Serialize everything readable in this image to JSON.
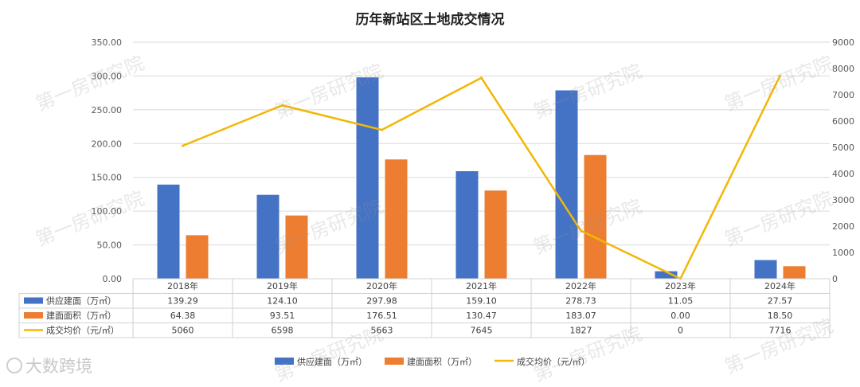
{
  "chart_data": {
    "type": "bar",
    "title": "历年新站区土地成交情况",
    "categories": [
      "2018年",
      "2019年",
      "2020年",
      "2021年",
      "2022年",
      "2023年",
      "2024年"
    ],
    "series": [
      {
        "name": "供应建面（万㎡）",
        "type": "bar",
        "axis": "left",
        "color": "#4472c4",
        "values": [
          139.29,
          124.1,
          297.98,
          159.1,
          278.73,
          11.05,
          27.57
        ],
        "labels": [
          "139.29",
          "124.10",
          "297.98",
          "159.10",
          "278.73",
          "11.05",
          "27.57"
        ]
      },
      {
        "name": "建面面积（万㎡）",
        "type": "bar",
        "axis": "left",
        "color": "#ed7d31",
        "values": [
          64.38,
          93.51,
          176.51,
          130.47,
          183.07,
          0.0,
          18.5
        ],
        "labels": [
          "64.38",
          "93.51",
          "176.51",
          "130.47",
          "183.07",
          "0.00",
          "18.50"
        ]
      },
      {
        "name": "成交均价（元/㎡）",
        "type": "line",
        "axis": "right",
        "color": "#f2b705",
        "values": [
          5060,
          6598,
          5663,
          7645,
          1827,
          0,
          7716
        ],
        "labels": [
          "5060",
          "6598",
          "5663",
          "7645",
          "1827",
          "0",
          "7716"
        ]
      }
    ],
    "y_left": {
      "min": 0,
      "max": 350,
      "ticks": [
        "0.00",
        "50.00",
        "100.00",
        "150.00",
        "200.00",
        "250.00",
        "300.00",
        "350.00"
      ]
    },
    "y_right": {
      "min": 0,
      "max": 9000,
      "ticks": [
        "0",
        "1000",
        "2000",
        "3000",
        "4000",
        "5000",
        "6000",
        "7000",
        "8000",
        "9000"
      ]
    },
    "grid": true,
    "legend": "bottom",
    "data_table": true
  },
  "watermark": "第一房研究院",
  "brand_text": "大数跨境"
}
